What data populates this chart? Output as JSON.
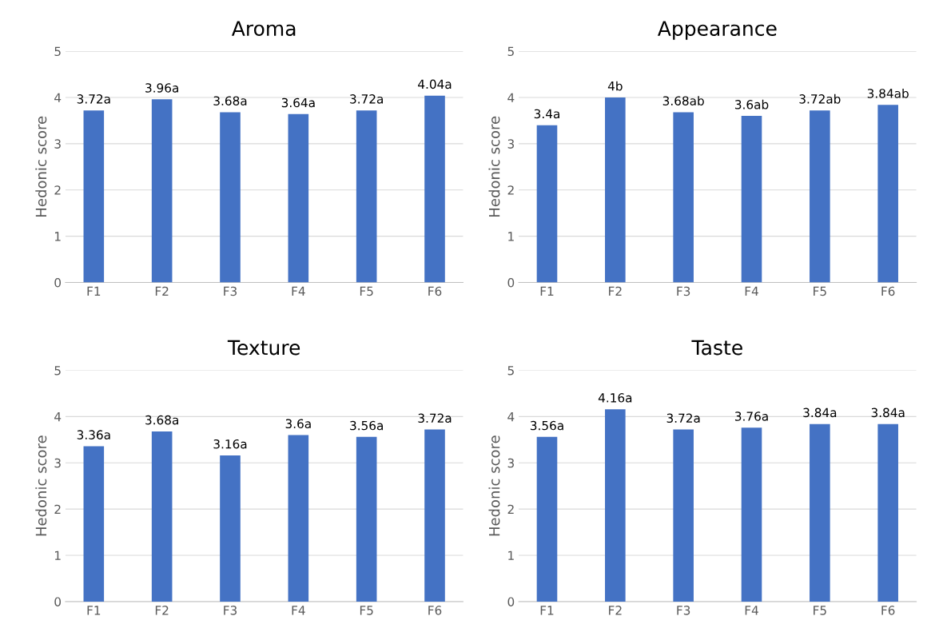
{
  "chart_data": [
    {
      "type": "bar",
      "title": "Aroma",
      "ylabel": "Hedonic score",
      "categories": [
        "F1",
        "F2",
        "F3",
        "F4",
        "F5",
        "F6"
      ],
      "values": [
        3.72,
        3.96,
        3.68,
        3.64,
        3.72,
        4.04
      ],
      "value_labels": [
        "3.72a",
        "3.96a",
        "3.68a",
        "3.64a",
        "3.72a",
        "4.04a"
      ],
      "color": "#4472c4",
      "ylim": [
        0,
        5
      ],
      "yticks": [
        0,
        1,
        2,
        3,
        4,
        5
      ],
      "grid": "y"
    },
    {
      "type": "bar",
      "title": "Appearance",
      "ylabel": "Hedonic score",
      "categories": [
        "F1",
        "F2",
        "F3",
        "F4",
        "F5",
        "F6"
      ],
      "values": [
        3.4,
        4,
        3.68,
        3.6,
        3.72,
        3.84
      ],
      "value_labels": [
        "3.4a",
        "4b",
        "3.68ab",
        "3.6ab",
        "3.72ab",
        "3.84ab"
      ],
      "color": "#4472c4",
      "ylim": [
        0,
        5
      ],
      "yticks": [
        0,
        1,
        2,
        3,
        4,
        5
      ],
      "grid": "y"
    },
    {
      "type": "bar",
      "title": "Texture",
      "ylabel": "Hedonic score",
      "categories": [
        "F1",
        "F2",
        "F3",
        "F4",
        "F5",
        "F6"
      ],
      "values": [
        3.36,
        3.68,
        3.16,
        3.6,
        3.56,
        3.72
      ],
      "value_labels": [
        "3.36a",
        "3.68a",
        "3.16a",
        "3.6a",
        "3.56a",
        "3.72a"
      ],
      "color": "#4472c4",
      "ylim": [
        0,
        5
      ],
      "yticks": [
        0,
        1,
        2,
        3,
        4,
        5
      ],
      "grid": "y"
    },
    {
      "type": "bar",
      "title": "Taste",
      "ylabel": "Hedonic score",
      "categories": [
        "F1",
        "F2",
        "F3",
        "F4",
        "F5",
        "F6"
      ],
      "values": [
        3.56,
        4.16,
        3.72,
        3.76,
        3.84,
        3.84
      ],
      "value_labels": [
        "3.56a",
        "4.16a",
        "3.72a",
        "3.76a",
        "3.84a",
        "3.84a"
      ],
      "color": "#4472c4",
      "ylim": [
        0,
        5
      ],
      "yticks": [
        0,
        1,
        2,
        3,
        4,
        5
      ],
      "grid": "y"
    }
  ]
}
